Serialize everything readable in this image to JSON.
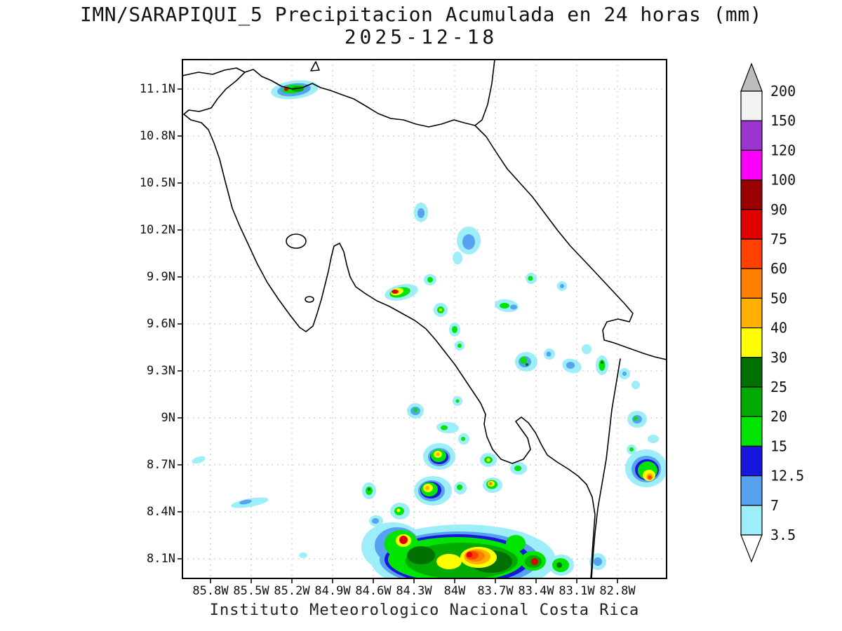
{
  "figure": {
    "title": "IMN/SARAPIQUI_5 Precipitacion Acumulada en 24 horas (mm)",
    "date": "2025-12-18",
    "footer": "Instituto Meteorologico Nacional Costa Rica"
  },
  "axes": {
    "x_ticks": [
      "85.8W",
      "85.5W",
      "85.2W",
      "84.9W",
      "84.6W",
      "84.3W",
      "84W",
      "83.7W",
      "83.4W",
      "83.1W",
      "82.8W"
    ],
    "y_ticks": [
      "11.1N",
      "10.8N",
      "10.5N",
      "10.2N",
      "9.9N",
      "9.6N",
      "9.3N",
      "9N",
      "8.7N",
      "8.4N",
      "8.1N"
    ]
  },
  "colorbar": {
    "levels": [
      "200",
      "150",
      "120",
      "100",
      "90",
      "75",
      "60",
      "50",
      "40",
      "30",
      "25",
      "20",
      "15",
      "12.5",
      "7",
      "3.5"
    ],
    "band_colors_top_to_bottom": [
      "#f2f2f2",
      "#9a35d0",
      "#fb00fb",
      "#990000",
      "#e00000",
      "#ff4000",
      "#ff8000",
      "#ffb000",
      "#ffff00",
      "#007000",
      "#00aa00",
      "#00e400",
      "#1616dc",
      "#57a2f0",
      "#9deef8"
    ],
    "above_max_color": "#bdbdbd",
    "below_min_color": "#ffffff"
  },
  "chart_data": {
    "type": "heatmap",
    "title": "IMN/SARAPIQUI_5 Precipitacion Acumulada en 24 horas (mm)",
    "subtitle": "2025-12-18",
    "units": "mm",
    "x_tick_labels": [
      "85.8W",
      "85.5W",
      "85.2W",
      "84.9W",
      "84.6W",
      "84.3W",
      "84W",
      "83.7W",
      "83.4W",
      "83.1W",
      "82.8W"
    ],
    "y_tick_labels": [
      "11.1N",
      "10.8N",
      "10.5N",
      "10.2N",
      "9.9N",
      "9.6N",
      "9.3N",
      "9N",
      "8.7N",
      "8.4N",
      "8.1N"
    ],
    "levels_mm": [
      3.5,
      7,
      12.5,
      15,
      20,
      25,
      30,
      40,
      50,
      60,
      75,
      90,
      100,
      120,
      150,
      200
    ],
    "palette_low_to_high": [
      "#9deef8",
      "#57a2f0",
      "#1616dc",
      "#00e400",
      "#00aa00",
      "#007000",
      "#ffff00",
      "#ffb000",
      "#ff8000",
      "#ff4000",
      "#e00000",
      "#990000",
      "#fb00fb",
      "#9a35d0",
      "#f2f2f2",
      "#bdbdbd"
    ],
    "legend_position": "right",
    "grid": true,
    "source": "Instituto Meteorologico Nacional Costa Rica"
  }
}
